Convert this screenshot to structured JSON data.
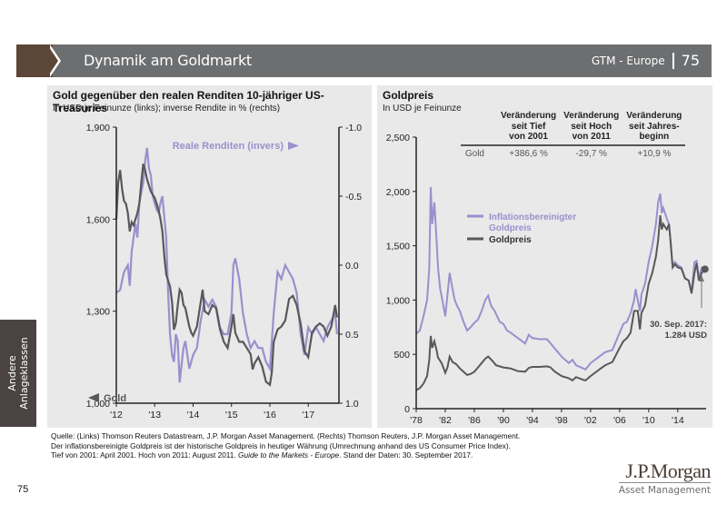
{
  "header": {
    "title": "Dynamik am Goldmarkt",
    "series": "GTM - Europe",
    "page": "75"
  },
  "side_tab": {
    "line1": "Andere",
    "line2": "Anlageklassen"
  },
  "left_panel": {
    "title": "Gold gegenüber den realen Renditen 10-jähriger US-Treasuries",
    "subtitle": "In USD je Feinunze (links); inverse Rendite in % (rechts)"
  },
  "right_panel": {
    "title": "Goldpreis",
    "subtitle": "In USD je Feinunze",
    "table": {
      "headers": [
        "Veränderung seit Tief von 2001",
        "Veränderung seit Hoch von 2011",
        "Veränderung seit Jahres-beginn"
      ],
      "header_lines": [
        [
          "Veränderung",
          "seit Tief",
          "von 2001"
        ],
        [
          "Veränderung",
          "seit Hoch",
          "von 2011"
        ],
        [
          "Veränderung",
          "seit Jahres-",
          "beginn"
        ]
      ],
      "row_label": "Gold",
      "values": [
        "+386,6 %",
        "-29,7 %",
        "+10,9 %"
      ]
    },
    "annotation_line1": "30. Sep. 2017:",
    "annotation_line2": "1.284 USD"
  },
  "footnote": {
    "line1": "Quelle: (Links) Thomson Reuters Datastream, J.P. Morgan Asset Management. (Rechts) Thomson Reuters, J.P. Morgan Asset Management.",
    "line2": "Der inflationsbereinigte Goldpreis ist der historische Goldpreis in heutiger Währung (Umrechnung anhand des US Consumer Price Index).",
    "line3a": "Tief von 2001: April 2001. Hoch von 2011: August 2011. ",
    "line3b": "Guide to the Markets - Europe",
    "line3c": ". Stand der Daten: 30. September 2017."
  },
  "page_number": "75",
  "logo": {
    "name": "J.P.Morgan",
    "sub": "Asset Management"
  },
  "colors": {
    "gold": "#58585a",
    "purple": "#9b8fcc",
    "header": "#6d6e70",
    "brown": "#5b4638"
  },
  "chart_data": [
    {
      "type": "line",
      "title": "Gold gegenüber den realen Renditen 10-jähriger US-Treasuries",
      "xlabel": "",
      "ylabel": "USD je Feinunze",
      "y2label": "inverse Rendite in %",
      "x_ticks": [
        "'12",
        "'13",
        "'14",
        "'15",
        "'16",
        "'17"
      ],
      "x_range": [
        2012.0,
        2017.8
      ],
      "ylim": [
        1000,
        1900
      ],
      "y_ticks": [
        "1,000",
        "1,300",
        "1,600",
        "1,900"
      ],
      "y2lim": [
        1.0,
        -1.0
      ],
      "y2_ticks": [
        "-1.0",
        "-0.5",
        "0.0",
        "0.5",
        "1.0"
      ],
      "legend": [
        {
          "name": "Gold",
          "axis": "left",
          "label": "Gold"
        },
        {
          "name": "Reale Renditen (invers)",
          "axis": "right",
          "label": "Reale Renditen (invers)"
        }
      ],
      "series": [
        {
          "name": "Gold",
          "axis": "left",
          "x": [
            2012.0,
            2012.05,
            2012.1,
            2012.15,
            2012.2,
            2012.25,
            2012.3,
            2012.35,
            2012.4,
            2012.45,
            2012.5,
            2012.55,
            2012.6,
            2012.65,
            2012.7,
            2012.75,
            2012.8,
            2012.85,
            2012.9,
            2012.95,
            2013.0,
            2013.05,
            2013.1,
            2013.15,
            2013.2,
            2013.25,
            2013.3,
            2013.35,
            2013.4,
            2013.45,
            2013.5,
            2013.55,
            2013.6,
            2013.65,
            2013.7,
            2013.75,
            2013.8,
            2013.85,
            2013.9,
            2013.95,
            2014.0,
            2014.1,
            2014.2,
            2014.25,
            2014.3,
            2014.4,
            2014.5,
            2014.6,
            2014.7,
            2014.8,
            2014.9,
            2015.0,
            2015.05,
            2015.1,
            2015.2,
            2015.3,
            2015.4,
            2015.5,
            2015.55,
            2015.6,
            2015.7,
            2015.8,
            2015.9,
            2016.0,
            2016.05,
            2016.1,
            2016.2,
            2016.3,
            2016.4,
            2016.5,
            2016.6,
            2016.7,
            2016.8,
            2016.9,
            2017.0,
            2017.1,
            2017.2,
            2017.3,
            2017.4,
            2017.5,
            2017.6,
            2017.7,
            2017.75
          ],
          "values": [
            1600,
            1720,
            1760,
            1700,
            1660,
            1650,
            1620,
            1560,
            1590,
            1580,
            1600,
            1620,
            1650,
            1720,
            1780,
            1760,
            1730,
            1710,
            1690,
            1680,
            1670,
            1650,
            1630,
            1600,
            1560,
            1480,
            1420,
            1400,
            1380,
            1330,
            1240,
            1260,
            1320,
            1370,
            1360,
            1320,
            1310,
            1280,
            1250,
            1230,
            1220,
            1250,
            1330,
            1370,
            1300,
            1290,
            1320,
            1310,
            1240,
            1200,
            1180,
            1250,
            1290,
            1230,
            1200,
            1200,
            1180,
            1160,
            1110,
            1130,
            1150,
            1120,
            1070,
            1060,
            1100,
            1200,
            1240,
            1250,
            1270,
            1340,
            1350,
            1320,
            1260,
            1170,
            1150,
            1230,
            1250,
            1260,
            1250,
            1220,
            1250,
            1320,
            1280
          ]
        },
        {
          "name": "Reale Renditen (invers)",
          "axis": "right",
          "x": [
            2012.0,
            2012.1,
            2012.2,
            2012.3,
            2012.35,
            2012.4,
            2012.5,
            2012.55,
            2012.6,
            2012.7,
            2012.75,
            2012.8,
            2012.85,
            2012.9,
            2012.95,
            2013.0,
            2013.05,
            2013.1,
            2013.15,
            2013.2,
            2013.25,
            2013.3,
            2013.35,
            2013.4,
            2013.45,
            2013.5,
            2013.55,
            2013.6,
            2013.65,
            2013.7,
            2013.75,
            2013.8,
            2013.9,
            2014.0,
            2014.1,
            2014.2,
            2014.3,
            2014.4,
            2014.5,
            2014.6,
            2014.7,
            2014.8,
            2014.9,
            2015.0,
            2015.05,
            2015.1,
            2015.2,
            2015.3,
            2015.4,
            2015.5,
            2015.6,
            2015.7,
            2015.8,
            2015.9,
            2016.0,
            2016.1,
            2016.2,
            2016.3,
            2016.4,
            2016.5,
            2016.6,
            2016.7,
            2016.8,
            2016.9,
            2017.0,
            2017.1,
            2017.2,
            2017.3,
            2017.4,
            2017.5,
            2017.6,
            2017.7,
            2017.75
          ],
          "values": [
            0.2,
            0.18,
            0.05,
            0.0,
            0.15,
            -0.1,
            -0.3,
            -0.2,
            -0.45,
            -0.6,
            -0.75,
            -0.85,
            -0.7,
            -0.65,
            -0.5,
            -0.45,
            -0.4,
            -0.38,
            -0.45,
            -0.5,
            -0.35,
            -0.2,
            0.2,
            0.5,
            0.65,
            0.7,
            0.5,
            0.55,
            0.85,
            0.72,
            0.6,
            0.55,
            0.75,
            0.65,
            0.6,
            0.4,
            0.25,
            0.3,
            0.25,
            0.3,
            0.45,
            0.5,
            0.5,
            0.35,
            0.0,
            -0.05,
            0.1,
            0.35,
            0.5,
            0.6,
            0.55,
            0.6,
            0.6,
            0.7,
            0.75,
            0.35,
            0.05,
            0.1,
            0.0,
            0.05,
            0.1,
            0.2,
            0.5,
            0.65,
            0.45,
            0.5,
            0.45,
            0.5,
            0.55,
            0.45,
            0.4,
            0.35,
            0.5
          ]
        }
      ]
    },
    {
      "type": "line",
      "title": "Goldpreis",
      "xlabel": "",
      "ylabel": "USD je Feinunze",
      "x_ticks": [
        "'78",
        "'82",
        "'86",
        "'90",
        "'94",
        "'98",
        "'02",
        "'06",
        "'10",
        "'14"
      ],
      "x_range": [
        1978,
        2017.8
      ],
      "ylim": [
        0,
        2500
      ],
      "y_ticks": [
        "0",
        "500",
        "1,000",
        "1,500",
        "2,000",
        "2,500"
      ],
      "legend": [
        {
          "name": "Inflationsbereinigter Goldpreis",
          "label_line1": "Inflationsbereinigter",
          "label_line2": "Goldpreis"
        },
        {
          "name": "Goldpreis",
          "label_line1": "Goldpreis"
        }
      ],
      "annotation": {
        "text": "30. Sep. 2017: 1.284 USD",
        "x": 2017.75,
        "y": 1284
      },
      "series": [
        {
          "name": "Inflationsbereinigter Goldpreis",
          "x": [
            1978,
            1978.5,
            1979,
            1979.5,
            1979.8,
            1980.0,
            1980.2,
            1980.5,
            1980.8,
            1981.0,
            1981.3,
            1981.6,
            1982.0,
            1982.3,
            1982.6,
            1983.0,
            1983.3,
            1983.6,
            1984.0,
            1984.5,
            1985.0,
            1985.5,
            1986.0,
            1986.5,
            1987.0,
            1987.5,
            1987.9,
            1988.3,
            1988.8,
            1989.5,
            1990.0,
            1990.5,
            1991.0,
            1992.0,
            1993.0,
            1993.5,
            1994.0,
            1995.0,
            1996.0,
            1996.5,
            1997.0,
            1997.5,
            1998.0,
            1999.0,
            1999.5,
            2000.0,
            2001.0,
            2001.3,
            2002.0,
            2003.0,
            2004.0,
            2005.0,
            2006.0,
            2006.5,
            2007.0,
            2007.5,
            2008.0,
            2008.2,
            2008.8,
            2009.0,
            2009.5,
            2010.0,
            2010.5,
            2011.0,
            2011.3,
            2011.6,
            2011.8,
            2012.0,
            2012.5,
            2012.8,
            2013.0,
            2013.3,
            2013.6,
            2014.0,
            2014.5,
            2015.0,
            2015.5,
            2015.9,
            2016.3,
            2016.6,
            2016.9,
            2017.3,
            2017.75
          ],
          "values": [
            690,
            720,
            850,
            1000,
            1300,
            2040,
            1700,
            1900,
            1550,
            1300,
            1100,
            1000,
            850,
            1050,
            1250,
            1100,
            1000,
            950,
            900,
            800,
            720,
            750,
            790,
            820,
            900,
            1000,
            1040,
            950,
            900,
            800,
            780,
            720,
            700,
            650,
            600,
            680,
            650,
            640,
            640,
            600,
            560,
            520,
            480,
            420,
            450,
            400,
            370,
            360,
            420,
            470,
            520,
            540,
            700,
            780,
            800,
            880,
            1000,
            1100,
            900,
            1050,
            1150,
            1350,
            1500,
            1700,
            1900,
            1980,
            1800,
            1850,
            1750,
            1700,
            1550,
            1300,
            1350,
            1320,
            1300,
            1200,
            1180,
            1080,
            1350,
            1360,
            1200,
            1300,
            1300
          ]
        },
        {
          "name": "Goldpreis",
          "x": [
            1978,
            1978.5,
            1979,
            1979.5,
            1979.8,
            1980.0,
            1980.2,
            1980.5,
            1980.8,
            1981.0,
            1981.5,
            1982.0,
            1982.3,
            1982.6,
            1983.0,
            1983.5,
            1984.0,
            1985.0,
            1985.5,
            1986.0,
            1986.5,
            1987.0,
            1987.5,
            1987.9,
            1988.5,
            1989.0,
            1990.0,
            1991.0,
            1992.0,
            1993.0,
            1993.5,
            1994.0,
            1995.0,
            1996.0,
            1996.5,
            1997.0,
            1998.0,
            1999.0,
            1999.5,
            2000.0,
            2001.0,
            2001.3,
            2002.0,
            2003.0,
            2004.0,
            2005.0,
            2006.0,
            2006.5,
            2007.0,
            2007.5,
            2008.0,
            2008.5,
            2008.8,
            2009.0,
            2009.5,
            2010.0,
            2010.5,
            2011.0,
            2011.3,
            2011.6,
            2011.8,
            2012.0,
            2012.5,
            2012.8,
            2013.0,
            2013.3,
            2013.6,
            2014.0,
            2014.5,
            2015.0,
            2015.5,
            2015.9,
            2016.3,
            2016.6,
            2016.9,
            2017.3,
            2017.75
          ],
          "values": [
            170,
            190,
            230,
            300,
            450,
            670,
            560,
            620,
            540,
            470,
            420,
            330,
            380,
            480,
            430,
            410,
            370,
            310,
            320,
            340,
            380,
            420,
            460,
            480,
            440,
            400,
            380,
            370,
            345,
            340,
            375,
            385,
            385,
            390,
            380,
            345,
            300,
            280,
            260,
            290,
            265,
            260,
            300,
            350,
            400,
            430,
            560,
            620,
            650,
            700,
            900,
            900,
            730,
            880,
            950,
            1150,
            1250,
            1400,
            1550,
            1780,
            1650,
            1700,
            1650,
            1700,
            1550,
            1300,
            1330,
            1300,
            1290,
            1200,
            1180,
            1060,
            1250,
            1340,
            1180,
            1250,
            1284
          ]
        }
      ]
    }
  ]
}
